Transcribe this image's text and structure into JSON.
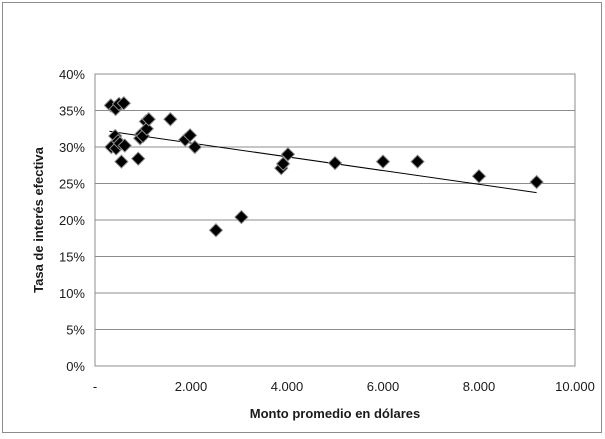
{
  "chart_data": {
    "type": "scatter",
    "xlabel": "Monto promedio en dólares",
    "ylabel": "Tasa de interés efectiva",
    "xlim": [
      0,
      10000
    ],
    "ylim": [
      0,
      0.4
    ],
    "x_tick_labels": [
      "-",
      "2.000",
      "4.000",
      "6.000",
      "8.000",
      "10.000"
    ],
    "y_tick_labels": [
      "0%",
      "5%",
      "10%",
      "15%",
      "20%",
      "25%",
      "30%",
      "35%",
      "40%"
    ],
    "grid": "horizontal",
    "marker": "diamond",
    "marker_color": "#000000",
    "points": [
      {
        "x": 330,
        "y": 0.357
      },
      {
        "x": 430,
        "y": 0.352
      },
      {
        "x": 500,
        "y": 0.359
      },
      {
        "x": 600,
        "y": 0.36
      },
      {
        "x": 340,
        "y": 0.3
      },
      {
        "x": 420,
        "y": 0.315
      },
      {
        "x": 440,
        "y": 0.298
      },
      {
        "x": 480,
        "y": 0.308
      },
      {
        "x": 520,
        "y": 0.305
      },
      {
        "x": 550,
        "y": 0.28
      },
      {
        "x": 620,
        "y": 0.302
      },
      {
        "x": 900,
        "y": 0.284
      },
      {
        "x": 940,
        "y": 0.312
      },
      {
        "x": 970,
        "y": 0.318
      },
      {
        "x": 1000,
        "y": 0.315
      },
      {
        "x": 1060,
        "y": 0.335
      },
      {
        "x": 1080,
        "y": 0.325
      },
      {
        "x": 1120,
        "y": 0.338
      },
      {
        "x": 1570,
        "y": 0.338
      },
      {
        "x": 1880,
        "y": 0.31
      },
      {
        "x": 1980,
        "y": 0.316
      },
      {
        "x": 2080,
        "y": 0.3
      },
      {
        "x": 2520,
        "y": 0.186
      },
      {
        "x": 3050,
        "y": 0.204
      },
      {
        "x": 3880,
        "y": 0.271
      },
      {
        "x": 3920,
        "y": 0.277
      },
      {
        "x": 4020,
        "y": 0.29
      },
      {
        "x": 5000,
        "y": 0.278
      },
      {
        "x": 6000,
        "y": 0.28
      },
      {
        "x": 6720,
        "y": 0.28
      },
      {
        "x": 8000,
        "y": 0.26
      },
      {
        "x": 9200,
        "y": 0.252
      }
    ],
    "trendline": {
      "x": [
        300,
        9200
      ],
      "y": [
        0.3215,
        0.2375
      ],
      "color": "#000000"
    }
  }
}
